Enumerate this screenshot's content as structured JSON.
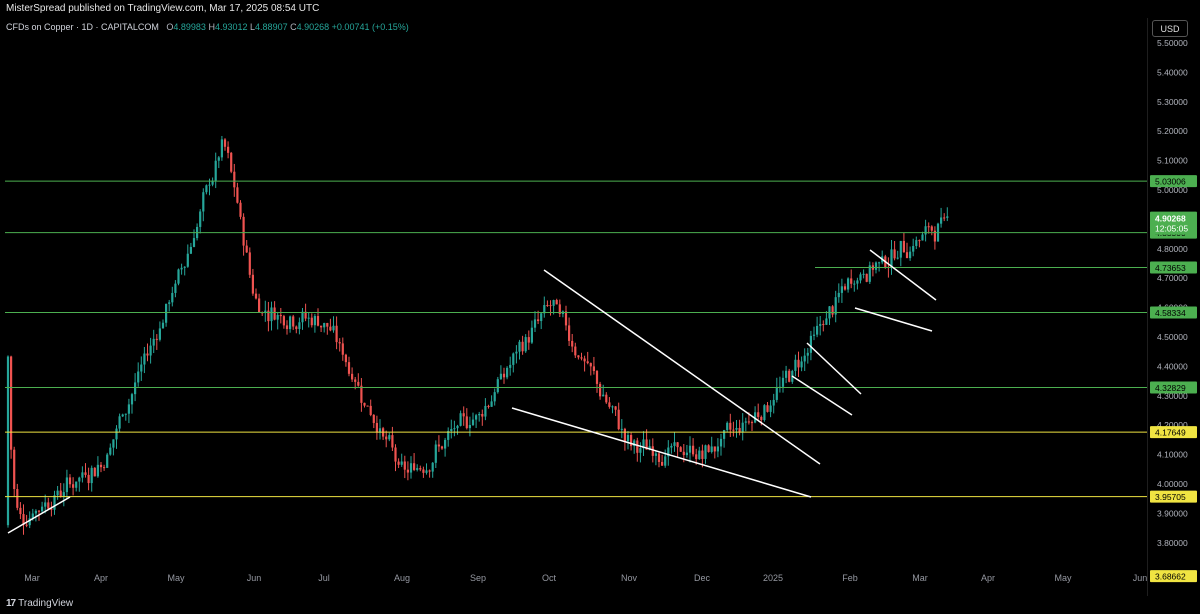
{
  "header": {
    "published": "MisterSpread published on TradingView.com, Mar 17, 2025 08:54 UTC"
  },
  "legend": {
    "symbol": "CFDs on Copper · 1D · CAPITALCOM",
    "o_label": "O",
    "o": "4.89983",
    "h_label": "H",
    "h": "4.93012",
    "l_label": "L",
    "l": "4.88907",
    "c_label": "C",
    "c": "4.90268",
    "change": "+0.00741 (+0.15%)"
  },
  "currency": "USD",
  "countdown": "12:05:05",
  "footer": {
    "brand": "TradingView",
    "logo": "17"
  },
  "colors": {
    "up": "#26a69a",
    "down": "#ef5350",
    "green_level": "#4caf50",
    "yellow_level": "#f0e442",
    "trendline": "#ffffff",
    "last_price": "#4caf50"
  },
  "chart_data": {
    "type": "candlestick",
    "instrument": "CFDs on Copper",
    "timeframe": "1D",
    "x_ticks": [
      "Mar",
      "Apr",
      "May",
      "Jun",
      "Jul",
      "Aug",
      "Sep",
      "Oct",
      "Nov",
      "Dec",
      "2025",
      "Feb",
      "Mar",
      "Apr",
      "May",
      "Jun"
    ],
    "y_ticks": [
      "3.80000",
      "3.90000",
      "4.00000",
      "4.10000",
      "4.20000",
      "4.30000",
      "4.40000",
      "4.50000",
      "4.60000",
      "4.70000",
      "4.80000",
      "5.00000",
      "5.10000",
      "5.20000",
      "5.30000",
      "5.40000",
      "5.50000"
    ],
    "ylim": [
      3.65,
      5.55
    ],
    "price_levels": [
      {
        "value": "5.03006",
        "color": "green"
      },
      {
        "value": "4.85500",
        "color": "green"
      },
      {
        "value": "4.73653",
        "color": "green"
      },
      {
        "value": "4.58334",
        "color": "green"
      },
      {
        "value": "4.32829",
        "color": "green"
      },
      {
        "value": "4.17649",
        "color": "yellow"
      },
      {
        "value": "3.95705",
        "color": "yellow"
      },
      {
        "value": "3.68662",
        "color": "yellow"
      }
    ],
    "last_price": "4.90268",
    "monthly_path": [
      {
        "month": "Mar 2024",
        "price": 3.86
      },
      {
        "month": "Apr 2024",
        "price": 4.08
      },
      {
        "month": "May 2024",
        "price": 4.7
      },
      {
        "month": "May 2024 peak",
        "price": 5.17
      },
      {
        "month": "Jun 2024",
        "price": 4.6
      },
      {
        "month": "Jul 2024",
        "price": 4.55
      },
      {
        "month": "Aug 2024",
        "price": 4.02
      },
      {
        "month": "Sep 2024",
        "price": 4.25
      },
      {
        "month": "Oct 2024",
        "price": 4.62
      },
      {
        "month": "Nov 2024",
        "price": 4.12
      },
      {
        "month": "Dec 2024",
        "price": 4.1
      },
      {
        "month": "Jan 2025",
        "price": 4.3
      },
      {
        "month": "Feb 2025",
        "price": 4.7
      },
      {
        "month": "Mar 2025",
        "price": 4.9
      }
    ]
  }
}
